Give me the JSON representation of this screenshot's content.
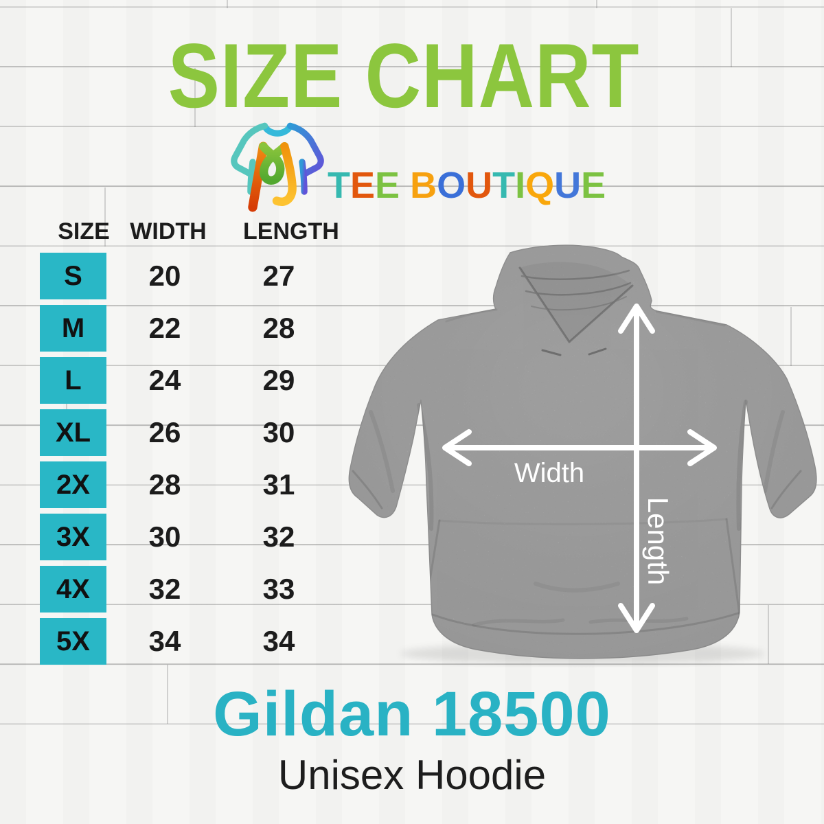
{
  "title": {
    "text": "SIZE CHART",
    "color": "#8cc63e"
  },
  "brand": {
    "monogram": "MJ",
    "name": "TEE BOUTIQUE",
    "letters": [
      {
        "ch": "T",
        "color": "#36b9b0"
      },
      {
        "ch": "E",
        "color": "#e2570d"
      },
      {
        "ch": "E",
        "color": "#7cc242"
      },
      {
        "ch": " "
      },
      {
        "ch": "B",
        "color": "#f7a10f"
      },
      {
        "ch": "O",
        "color": "#3a6fd8"
      },
      {
        "ch": "U",
        "color": "#e2570d"
      },
      {
        "ch": "T",
        "color": "#36b9b0"
      },
      {
        "ch": "I",
        "color": "#7cc242"
      },
      {
        "ch": "Q",
        "color": "#f9a70b"
      },
      {
        "ch": "U",
        "color": "#4377d9"
      },
      {
        "ch": "E",
        "color": "#7cc242"
      }
    ]
  },
  "table": {
    "headers": [
      "SIZE",
      "WIDTH",
      "LENGTH"
    ],
    "rows": [
      {
        "size": "S",
        "width": "20",
        "length": "27"
      },
      {
        "size": "M",
        "width": "22",
        "length": "28"
      },
      {
        "size": "L",
        "width": "24",
        "length": "29"
      },
      {
        "size": "XL",
        "width": "26",
        "length": "30"
      },
      {
        "size": "2X",
        "width": "28",
        "length": "31"
      },
      {
        "size": "3X",
        "width": "30",
        "length": "32"
      },
      {
        "size": "4X",
        "width": "32",
        "length": "33"
      },
      {
        "size": "5X",
        "width": "34",
        "length": "34"
      }
    ],
    "size_cell_color": "#29b7c6"
  },
  "diagram": {
    "width_label": "Width",
    "length_label": "Length"
  },
  "product": {
    "name": "Gildan 18500",
    "subtitle": "Unisex Hoodie",
    "name_color": "#29b2c4"
  },
  "chart_data": {
    "type": "table",
    "title": "SIZE CHART",
    "columns": [
      "SIZE",
      "WIDTH",
      "LENGTH"
    ],
    "rows": [
      [
        "S",
        20,
        27
      ],
      [
        "M",
        22,
        28
      ],
      [
        "L",
        24,
        29
      ],
      [
        "XL",
        26,
        30
      ],
      [
        "2X",
        28,
        31
      ],
      [
        "3X",
        30,
        32
      ],
      [
        "4X",
        32,
        33
      ],
      [
        "5X",
        34,
        34
      ]
    ]
  }
}
